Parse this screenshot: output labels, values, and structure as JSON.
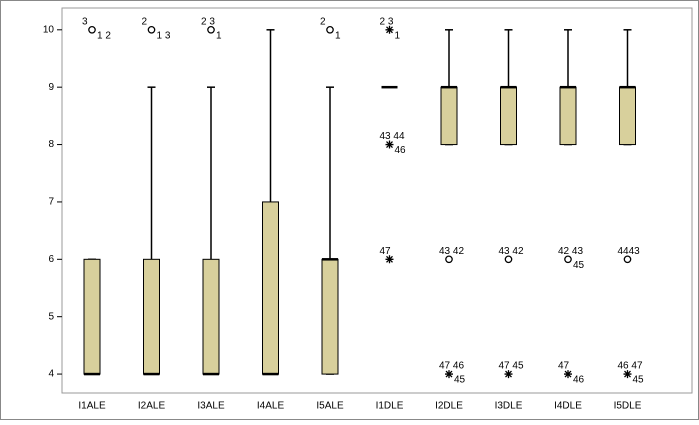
{
  "chart_data": {
    "type": "boxplot",
    "categories": [
      "I1ALE",
      "I2ALE",
      "I3ALE",
      "I4ALE",
      "I5ALE",
      "I1DLE",
      "I2DLE",
      "I3DLE",
      "I4DLE",
      "I5DLE"
    ],
    "color": "#d8d09c",
    "ylim": [
      3.67,
      10.38
    ],
    "yticks": [
      4,
      5,
      6,
      7,
      8,
      9,
      10
    ],
    "boxes": [
      {
        "min": 4,
        "q1": 4,
        "median": 4,
        "q3": 6,
        "max": 6,
        "outliers": [
          {
            "value": 10,
            "marker": "circle",
            "labels": [
              "3",
              "1 2"
            ]
          }
        ]
      },
      {
        "min": 4,
        "q1": 4,
        "median": 4,
        "q3": 6,
        "max": 9,
        "outliers": [
          {
            "value": 10,
            "marker": "circle",
            "labels": [
              "2",
              "1 3"
            ]
          }
        ]
      },
      {
        "min": 4,
        "q1": 4,
        "median": 4,
        "q3": 6,
        "max": 9,
        "outliers": [
          {
            "value": 10,
            "marker": "circle",
            "labels": [
              "2 3",
              "1"
            ]
          }
        ]
      },
      {
        "min": 4,
        "q1": 4,
        "median": 4,
        "q3": 7,
        "max": 10,
        "outliers": []
      },
      {
        "min": 4,
        "q1": 4,
        "median": 6,
        "q3": 6,
        "max": 9,
        "outliers": [
          {
            "value": 10,
            "marker": "circle",
            "labels": [
              "2",
              "1"
            ]
          }
        ]
      },
      {
        "min": 9,
        "q1": 9,
        "median": 9,
        "q3": 9,
        "max": 9,
        "outliers": [
          {
            "value": 10,
            "marker": "star",
            "labels": [
              "2 3",
              "1"
            ]
          },
          {
            "value": 8,
            "marker": "star",
            "labels": [
              "43 44",
              "46"
            ]
          },
          {
            "value": 6,
            "marker": "star",
            "labels": [
              "47"
            ]
          }
        ]
      },
      {
        "min": 8,
        "q1": 8,
        "median": 9,
        "q3": 9,
        "max": 10,
        "outliers": [
          {
            "value": 6,
            "marker": "circle",
            "labels": [
              "43 42"
            ]
          },
          {
            "value": 4,
            "marker": "star",
            "labels": [
              "47 46",
              "45"
            ]
          }
        ]
      },
      {
        "min": 8,
        "q1": 8,
        "median": 9,
        "q3": 9,
        "max": 10,
        "outliers": [
          {
            "value": 6,
            "marker": "circle",
            "labels": [
              "43 42"
            ]
          },
          {
            "value": 4,
            "marker": "star",
            "labels": [
              "47 45"
            ]
          }
        ]
      },
      {
        "min": 8,
        "q1": 8,
        "median": 9,
        "q3": 9,
        "max": 10,
        "outliers": [
          {
            "value": 6,
            "marker": "circle",
            "labels": [
              "42 43",
              "45"
            ]
          },
          {
            "value": 4,
            "marker": "star",
            "labels": [
              "47",
              "46"
            ]
          }
        ]
      },
      {
        "min": 8,
        "q1": 8,
        "median": 9,
        "q3": 9,
        "max": 10,
        "outliers": [
          {
            "value": 6,
            "marker": "circle",
            "labels": [
              "4443"
            ]
          },
          {
            "value": 4,
            "marker": "star",
            "labels": [
              "46 47",
              "45"
            ]
          }
        ]
      }
    ]
  }
}
